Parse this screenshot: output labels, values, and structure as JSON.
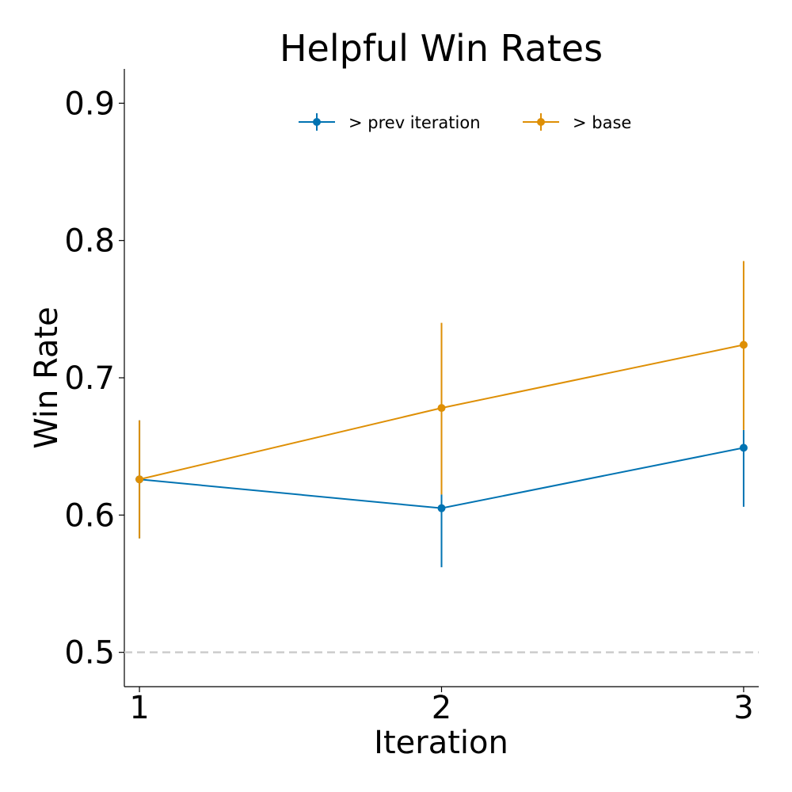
{
  "chart_data": {
    "type": "line",
    "title": "Helpful Win Rates",
    "xlabel": "Iteration",
    "ylabel": "Win Rate",
    "x": [
      1,
      2,
      3
    ],
    "x_ticks": [
      "1",
      "2",
      "3"
    ],
    "y_ticks": [
      "0.5",
      "0.6",
      "0.7",
      "0.8",
      "0.9"
    ],
    "y_tick_values": [
      0.5,
      0.6,
      0.7,
      0.8,
      0.9
    ],
    "xlim": [
      0.95,
      3.05
    ],
    "ylim": [
      0.475,
      0.925
    ],
    "reference_line": {
      "y": 0.5,
      "style": "dashed",
      "color": "#cccccc"
    },
    "grid": false,
    "legend_placement": "top-center",
    "series": [
      {
        "name": "> prev iteration",
        "color": "#0173b2",
        "values": [
          0.626,
          0.605,
          0.649
        ],
        "error_low": [
          0.583,
          0.562,
          0.606
        ],
        "error_high": [
          0.669,
          0.615,
          0.662
        ]
      },
      {
        "name": "> base",
        "color": "#de8f05",
        "values": [
          0.626,
          0.678,
          0.724
        ],
        "error_low": [
          0.583,
          0.615,
          0.662
        ],
        "error_high": [
          0.669,
          0.74,
          0.785
        ]
      }
    ]
  }
}
